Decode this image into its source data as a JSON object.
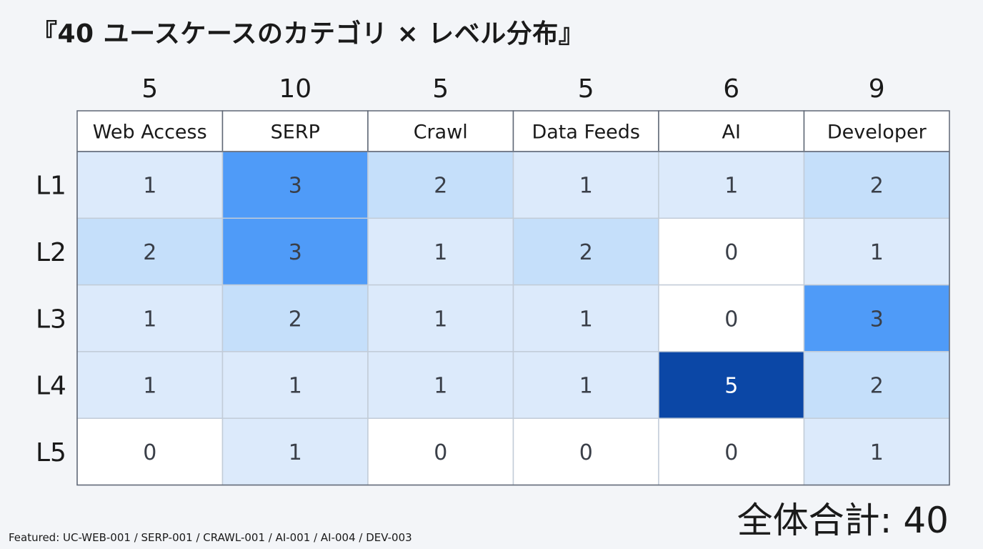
{
  "title": "『40 ユースケースのカテゴリ × レベル分布』",
  "total_label": "全体合計: 40",
  "featured_label": "Featured: UC-WEB-001 / SERP-001 / CRAWL-001 / AI-001 / AI-004 / DEV-003",
  "chart_data": {
    "type": "heatmap",
    "categories": [
      "Web Access",
      "SERP",
      "Crawl",
      "Data Feeds",
      "AI",
      "Developer"
    ],
    "column_totals": [
      5,
      10,
      5,
      5,
      6,
      9
    ],
    "rows": [
      "L1",
      "L2",
      "L3",
      "L4",
      "L5"
    ],
    "values": [
      [
        1,
        3,
        2,
        1,
        1,
        2
      ],
      [
        2,
        3,
        1,
        2,
        0,
        1
      ],
      [
        1,
        2,
        1,
        1,
        0,
        3
      ],
      [
        1,
        1,
        1,
        1,
        5,
        2
      ],
      [
        0,
        1,
        0,
        0,
        0,
        1
      ]
    ],
    "total": 40,
    "colors": {
      "0": "#ffffff",
      "1": "#dceafb",
      "2": "#c5dffa",
      "3": "#4f9bf8",
      "5": "#0b47a6",
      "border": "#5f6775",
      "cell_border": "#c2ccd8",
      "text_dark": "#3a3f48",
      "text_light": "#ffffff"
    }
  }
}
